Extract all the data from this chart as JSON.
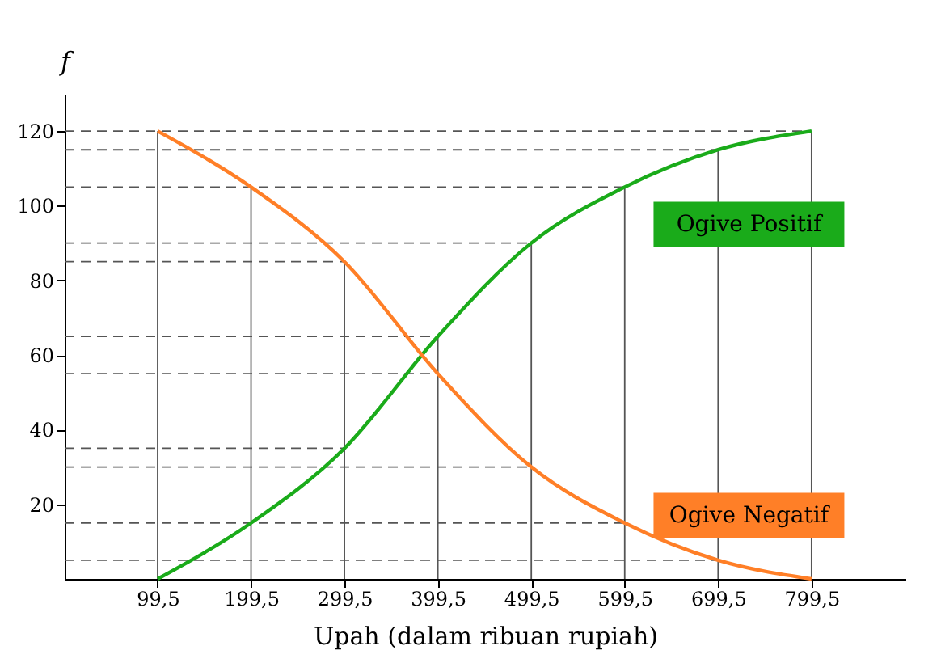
{
  "chart_data": {
    "type": "line",
    "xlabel": "Upah (dalam ribuan rupiah)",
    "ylabel": "f",
    "x": [
      99.5,
      199.5,
      299.5,
      399.5,
      499.5,
      599.5,
      699.5,
      799.5
    ],
    "series": [
      {
        "name": "Ogive Positif",
        "color": "#1aab1a",
        "values": [
          0,
          15,
          35,
          65,
          90,
          105,
          115,
          120
        ]
      },
      {
        "name": "Ogive Negatif",
        "color": "#ff7f27",
        "values": [
          120,
          105,
          85,
          55,
          30,
          15,
          5,
          0
        ]
      }
    ],
    "xlim": [
      0,
      900
    ],
    "ylim": [
      0,
      130
    ],
    "xticks": [
      {
        "value": 99.5,
        "label": "99,5"
      },
      {
        "value": 199.5,
        "label": "199,5"
      },
      {
        "value": 299.5,
        "label": "299,5"
      },
      {
        "value": 399.5,
        "label": "399,5"
      },
      {
        "value": 499.5,
        "label": "499,5"
      },
      {
        "value": 599.5,
        "label": "599,5"
      },
      {
        "value": 699.5,
        "label": "699,5"
      },
      {
        "value": 799.5,
        "label": "799,5"
      }
    ],
    "yticks": [
      20,
      40,
      60,
      80,
      100,
      120
    ],
    "ref_lines": [
      {
        "axis": "y",
        "value": 5,
        "line_style": "dashed",
        "color": "#555555"
      },
      {
        "axis": "y",
        "value": 15,
        "line_style": "dashed",
        "color": "#555555"
      },
      {
        "axis": "y",
        "value": 30,
        "line_style": "dashed",
        "color": "#555555"
      },
      {
        "axis": "y",
        "value": 35,
        "line_style": "dashed",
        "color": "#555555"
      },
      {
        "axis": "y",
        "value": 55,
        "line_style": "dashed",
        "color": "#555555"
      },
      {
        "axis": "y",
        "value": 65,
        "line_style": "dashed",
        "color": "#555555"
      },
      {
        "axis": "y",
        "value": 85,
        "line_style": "dashed",
        "color": "#555555"
      },
      {
        "axis": "y",
        "value": 90,
        "line_style": "dashed",
        "color": "#555555"
      },
      {
        "axis": "y",
        "value": 105,
        "line_style": "dashed",
        "color": "#555555"
      },
      {
        "axis": "y",
        "value": 115,
        "line_style": "dashed",
        "color": "#555555"
      },
      {
        "axis": "y",
        "value": 120,
        "line_style": "dashed",
        "color": "#555555"
      },
      {
        "axis": "x",
        "value": 199.5,
        "line_style": "solid",
        "color": "#555555"
      },
      {
        "axis": "x",
        "value": 299.5,
        "line_style": "solid",
        "color": "#555555"
      },
      {
        "axis": "x",
        "value": 399.5,
        "line_style": "solid",
        "color": "#555555"
      },
      {
        "axis": "x",
        "value": 499.5,
        "line_style": "solid",
        "color": "#555555"
      },
      {
        "axis": "x",
        "value": 599.5,
        "line_style": "solid",
        "color": "#555555"
      },
      {
        "axis": "x",
        "value": 699.5,
        "line_style": "solid",
        "color": "#555555"
      },
      {
        "axis": "x",
        "value": 799.5,
        "line_style": "solid",
        "color": "#555555"
      },
      {
        "axis": "x",
        "value": 99.5,
        "line_style": "solid",
        "color": "#555555"
      }
    ],
    "marker": "none",
    "line_style": "solid",
    "grid": false,
    "legend": false
  }
}
